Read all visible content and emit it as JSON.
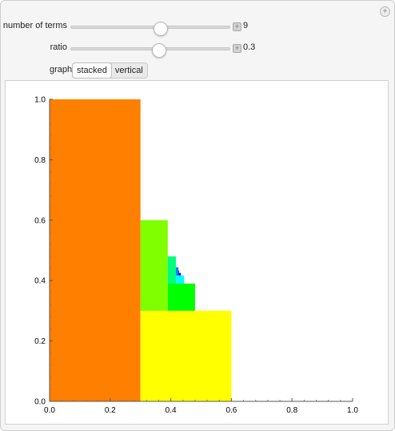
{
  "controls": {
    "terms": {
      "label": "number of terms",
      "value": "9",
      "fraction": 0.56
    },
    "ratio": {
      "label": "ratio",
      "value": "0.3",
      "fraction": 0.55
    },
    "graph": {
      "label": "graph",
      "options": [
        "stacked",
        "vertical"
      ],
      "selected": "stacked"
    }
  },
  "icons": {
    "corner": "plus-icon",
    "stepper": "plus-icon"
  },
  "chart_data": {
    "type": "bar",
    "title": "",
    "xlim": [
      0,
      1
    ],
    "ylim": [
      0,
      1
    ],
    "xticks": [
      "0.0",
      "0.2",
      "0.4",
      "0.6",
      "0.8",
      "1.0"
    ],
    "yticks": [
      "0.0",
      "0.2",
      "0.4",
      "0.6",
      "0.8",
      "1.0"
    ],
    "rects": [
      {
        "x0": 0.0,
        "x1": 0.3,
        "y0": 0.0,
        "y1": 1.0,
        "color": "#FF7F00"
      },
      {
        "x0": 0.3,
        "x1": 0.6,
        "y0": 0.0,
        "y1": 0.3,
        "color": "#FFFF00"
      },
      {
        "x0": 0.3,
        "x1": 0.39,
        "y0": 0.3,
        "y1": 0.6,
        "color": "#7FFF00"
      },
      {
        "x0": 0.39,
        "x1": 0.48,
        "y0": 0.3,
        "y1": 0.39,
        "color": "#00FF00"
      },
      {
        "x0": 0.39,
        "x1": 0.417,
        "y0": 0.39,
        "y1": 0.48,
        "color": "#00FF7F"
      },
      {
        "x0": 0.417,
        "x1": 0.444,
        "y0": 0.39,
        "y1": 0.417,
        "color": "#00FFFF"
      },
      {
        "x0": 0.417,
        "x1": 0.4251,
        "y0": 0.417,
        "y1": 0.444,
        "color": "#007FFF"
      },
      {
        "x0": 0.4251,
        "x1": 0.4332,
        "y0": 0.417,
        "y1": 0.4251,
        "color": "#0000FF"
      },
      {
        "x0": 0.4251,
        "x1": 0.4275,
        "y0": 0.4251,
        "y1": 0.4332,
        "color": "#5F00BF"
      }
    ]
  }
}
